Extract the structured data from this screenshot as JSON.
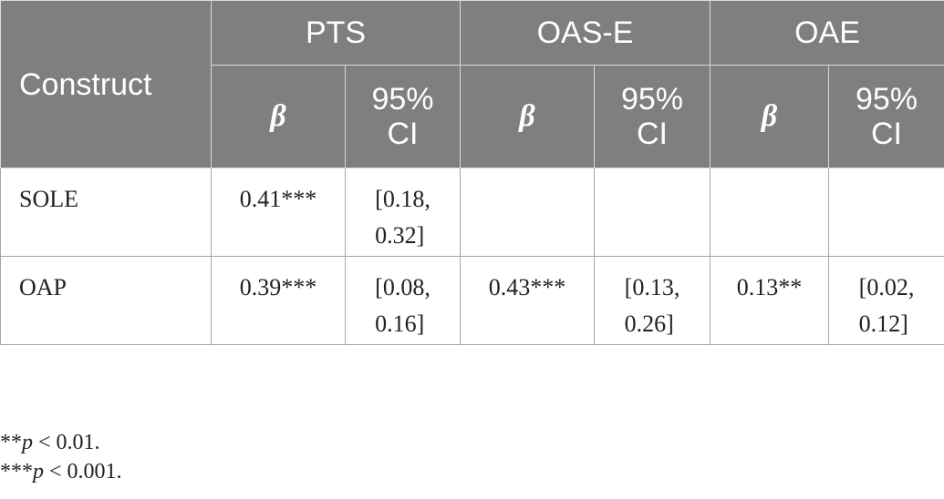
{
  "header": {
    "construct": "Construct",
    "groups": [
      "PTS",
      "OAS-E",
      "OAE"
    ],
    "beta": "β",
    "ci_line1": "95%",
    "ci_line2": "CI"
  },
  "rows": [
    {
      "label": "SOLE",
      "cells": [
        {
          "beta": "0.41***",
          "ci1": "[0.18,",
          "ci2": "0.32]"
        },
        {
          "beta": "",
          "ci1": "",
          "ci2": ""
        },
        {
          "beta": "",
          "ci1": "",
          "ci2": ""
        }
      ]
    },
    {
      "label": "OAP",
      "cells": [
        {
          "beta": "0.39***",
          "ci1": "[0.08,",
          "ci2": "0.16]"
        },
        {
          "beta": "0.43***",
          "ci1": "[0.13,",
          "ci2": "0.26]"
        },
        {
          "beta": "0.13**",
          "ci1": "[0.02,",
          "ci2": "0.12]"
        }
      ]
    }
  ],
  "notes": [
    {
      "stars": "**",
      "p": "p",
      "rest": " < 0.01."
    },
    {
      "stars": "***",
      "p": "p",
      "rest": " < 0.001."
    }
  ]
}
